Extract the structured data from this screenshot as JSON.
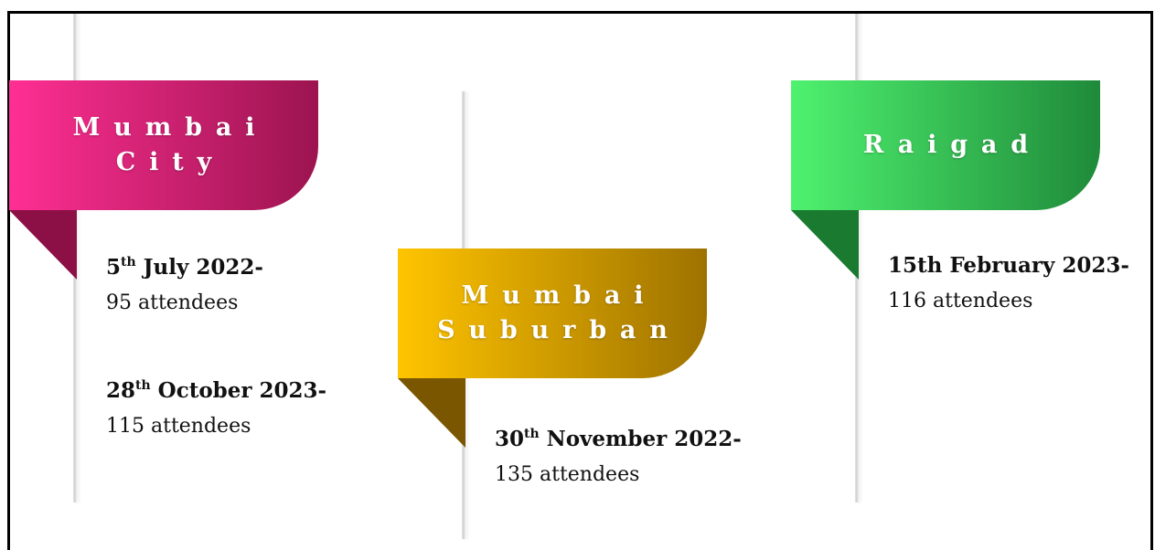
{
  "cards": [
    {
      "title": [
        "Mumbai",
        "City"
      ],
      "events": [
        {
          "day": "5",
          "suffix": "th",
          "rest": " July 2022-",
          "attendees": "95 attendees"
        },
        {
          "day": "28",
          "suffix": "th",
          "rest": " October 2023-",
          "attendees": "115 attendees"
        }
      ]
    },
    {
      "title": [
        "Mumbai",
        "Suburban"
      ],
      "events": [
        {
          "day": "30",
          "suffix": "th",
          "rest": " November 2022-",
          "attendees": "135 attendees"
        }
      ]
    },
    {
      "title": [
        "Raigad"
      ],
      "events": [
        {
          "date": "15th February 2023-",
          "attendees": "116 attendees"
        }
      ]
    }
  ]
}
